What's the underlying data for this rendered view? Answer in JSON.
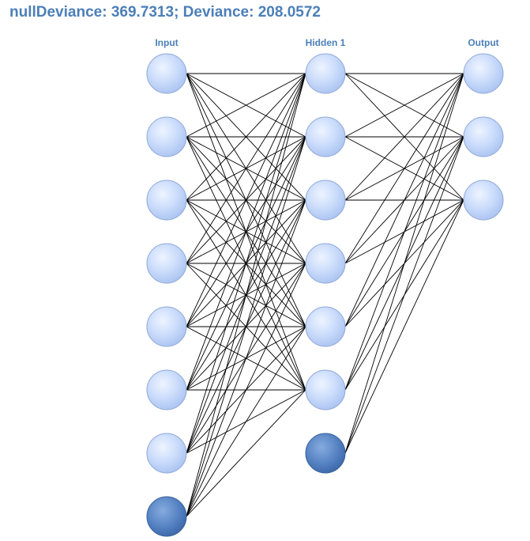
{
  "title": "nullDeviance: 369.7313; Deviance: 208.0572",
  "colors": {
    "title": "#4b7fb8",
    "label": "#4b7fb8",
    "node_fill_light": "#dde9ff",
    "node_fill_mid": "#b5ccf6",
    "node_stroke": "#8fa8d8",
    "bias_fill_light": "#7ea7e0",
    "bias_fill_dark": "#3f6db0",
    "edge": "#000000"
  },
  "layers": [
    {
      "label": "Input",
      "nodes": 7,
      "bias": true
    },
    {
      "label": "Hidden 1",
      "nodes": 6,
      "bias": true
    },
    {
      "label": "Output",
      "nodes": 3,
      "bias": false
    }
  ]
}
